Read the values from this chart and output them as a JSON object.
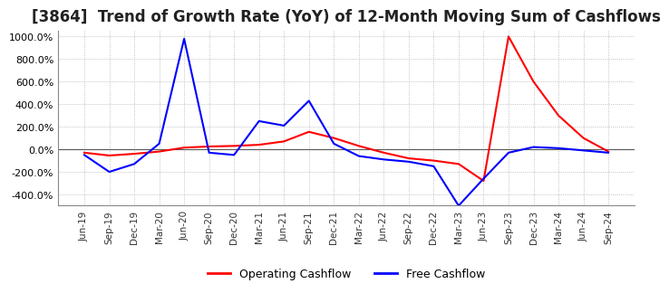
{
  "title": "[3864]  Trend of Growth Rate (YoY) of 12-Month Moving Sum of Cashflows",
  "title_fontsize": 12,
  "background_color": "#ffffff",
  "grid_color": "#b0b0b0",
  "grid_style": "dotted",
  "ylim": [
    -500,
    1050
  ],
  "yticks": [
    -400,
    -200,
    0,
    200,
    400,
    600,
    800,
    1000
  ],
  "legend_labels": [
    "Operating Cashflow",
    "Free Cashflow"
  ],
  "legend_colors": [
    "#ff0000",
    "#0000ff"
  ],
  "x_labels": [
    "Jun-19",
    "Sep-19",
    "Dec-19",
    "Mar-20",
    "Jun-20",
    "Sep-20",
    "Dec-20",
    "Mar-21",
    "Jun-21",
    "Sep-21",
    "Dec-21",
    "Mar-22",
    "Jun-22",
    "Sep-22",
    "Dec-22",
    "Mar-23",
    "Jun-23",
    "Sep-23",
    "Dec-23",
    "Mar-24",
    "Jun-24",
    "Sep-24"
  ],
  "operating_cashflow": [
    -30,
    -55,
    -40,
    -20,
    15,
    25,
    30,
    40,
    70,
    155,
    100,
    30,
    -30,
    -80,
    -100,
    -130,
    -280,
    1000,
    600,
    300,
    100,
    -20
  ],
  "free_cashflow": [
    -50,
    -200,
    -130,
    50,
    980,
    -30,
    -50,
    250,
    210,
    430,
    50,
    -60,
    -90,
    -110,
    -150,
    -500,
    -260,
    -30,
    20,
    10,
    -10,
    -30
  ]
}
